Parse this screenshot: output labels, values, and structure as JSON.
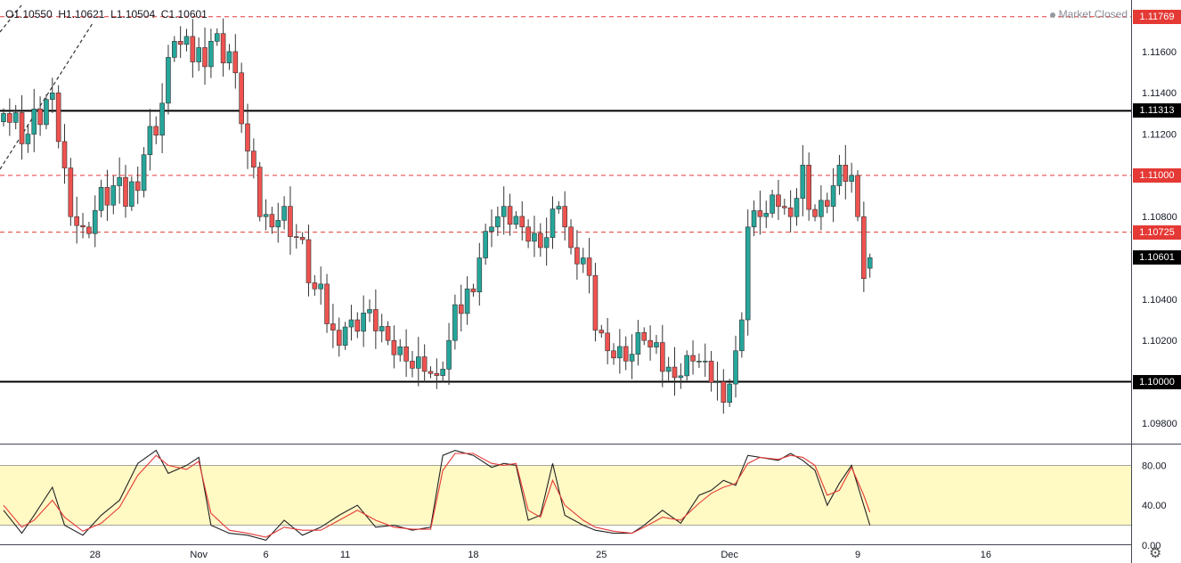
{
  "header": {
    "ohlc": "O1.10550  H1.10621  L1.10504  C1.10601",
    "status": "Market Closed"
  },
  "price_tags": [
    {
      "label": "1.11769",
      "value": 1.11769,
      "color": "#e53935"
    },
    {
      "label": "1.11313",
      "value": 1.11313,
      "color": "#000000"
    },
    {
      "label": "1.11000",
      "value": 1.11,
      "color": "#e53935"
    },
    {
      "label": "1.10725",
      "value": 1.10725,
      "color": "#e53935"
    },
    {
      "label": "1.10601",
      "value": 1.10601,
      "color": "#000000"
    },
    {
      "label": "1.10000",
      "value": 1.1,
      "color": "#000000"
    }
  ],
  "chart_data": [
    {
      "type": "candlestick",
      "title": "",
      "ylim": [
        1.097,
        1.1185
      ],
      "yticks": [
        "1.11600",
        "1.11400",
        "1.11200",
        "1.11000",
        "1.10800",
        "1.10600",
        "1.10400",
        "1.10200",
        "1.10000",
        "1.09800"
      ],
      "ytick_values": [
        1.116,
        1.114,
        1.112,
        1.11,
        1.108,
        1.106,
        1.104,
        1.102,
        1.1,
        1.098
      ],
      "xticks": [
        "28",
        "Nov",
        "6",
        "11",
        "18",
        "25",
        "Dec",
        "9",
        "16"
      ],
      "xtick_bar_index": [
        15,
        32,
        43,
        56,
        77,
        98,
        119,
        140,
        161
      ],
      "horizontal_lines": [
        {
          "value": 1.11769,
          "style": "dashed",
          "color": "#e53935"
        },
        {
          "value": 1.11313,
          "style": "solid",
          "color": "#000000"
        },
        {
          "value": 1.11,
          "style": "dashed",
          "color": "#e53935"
        },
        {
          "value": 1.10725,
          "style": "dashed",
          "color": "#e53935"
        },
        {
          "value": 1.1,
          "style": "solid",
          "color": "#000000"
        }
      ],
      "bull_color": "#26a69a",
      "bear_color": "#ef5350",
      "close_anchors": [
        {
          "i": 0,
          "c": 1.113
        },
        {
          "i": 4,
          "c": 1.112
        },
        {
          "i": 8,
          "c": 1.114
        },
        {
          "i": 11,
          "c": 1.108
        },
        {
          "i": 13,
          "c": 1.1075
        },
        {
          "i": 18,
          "c": 1.1095
        },
        {
          "i": 20,
          "c": 1.1085
        },
        {
          "i": 23,
          "c": 1.111
        },
        {
          "i": 26,
          "c": 1.1135
        },
        {
          "i": 28,
          "c": 1.1165
        },
        {
          "i": 31,
          "c": 1.1155
        },
        {
          "i": 34,
          "c": 1.1165
        },
        {
          "i": 37,
          "c": 1.116
        },
        {
          "i": 39,
          "c": 1.1125
        },
        {
          "i": 42,
          "c": 1.108
        },
        {
          "i": 44,
          "c": 1.1075
        },
        {
          "i": 46,
          "c": 1.1085
        },
        {
          "i": 48,
          "c": 1.107
        },
        {
          "i": 51,
          "c": 1.1045
        },
        {
          "i": 54,
          "c": 1.1025
        },
        {
          "i": 57,
          "c": 1.103
        },
        {
          "i": 60,
          "c": 1.1035
        },
        {
          "i": 63,
          "c": 1.102
        },
        {
          "i": 66,
          "c": 1.101
        },
        {
          "i": 69,
          "c": 1.1005
        },
        {
          "i": 71,
          "c": 1.1003
        },
        {
          "i": 73,
          "c": 1.102
        },
        {
          "i": 76,
          "c": 1.1045
        },
        {
          "i": 78,
          "c": 1.106
        },
        {
          "i": 80,
          "c": 1.1075
        },
        {
          "i": 82,
          "c": 1.1085
        },
        {
          "i": 85,
          "c": 1.1075
        },
        {
          "i": 88,
          "c": 1.1065
        },
        {
          "i": 91,
          "c": 1.1085
        },
        {
          "i": 93,
          "c": 1.1065
        },
        {
          "i": 95,
          "c": 1.106
        },
        {
          "i": 97,
          "c": 1.1025
        },
        {
          "i": 99,
          "c": 1.1015
        },
        {
          "i": 102,
          "c": 1.101
        },
        {
          "i": 105,
          "c": 1.102
        },
        {
          "i": 108,
          "c": 1.1005
        },
        {
          "i": 110,
          "c": 1.1002
        },
        {
          "i": 113,
          "c": 1.101
        },
        {
          "i": 115,
          "c": 1.101
        },
        {
          "i": 117,
          "c": 1.1
        },
        {
          "i": 118,
          "c": 1.099
        },
        {
          "i": 120,
          "c": 1.1015
        },
        {
          "i": 121,
          "c": 1.103
        },
        {
          "i": 122,
          "c": 1.1075
        },
        {
          "i": 124,
          "c": 1.108
        },
        {
          "i": 127,
          "c": 1.1085
        },
        {
          "i": 129,
          "c": 1.108
        },
        {
          "i": 131,
          "c": 1.1105
        },
        {
          "i": 133,
          "c": 1.108
        },
        {
          "i": 135,
          "c": 1.1085
        },
        {
          "i": 137,
          "c": 1.1105
        },
        {
          "i": 139,
          "c": 1.11
        },
        {
          "i": 140,
          "c": 1.108
        },
        {
          "i": 141,
          "c": 1.105
        },
        {
          "i": 142,
          "c": 1.10601
        }
      ],
      "last_bar": {
        "o": 1.1055,
        "h": 1.10621,
        "l": 1.10504,
        "c": 1.10601
      }
    },
    {
      "type": "line",
      "title": "",
      "ylim": [
        0,
        100
      ],
      "yticks": [
        "80.00",
        "40.00",
        "0.00"
      ],
      "ytick_values": [
        80,
        40,
        0
      ],
      "band": [
        20,
        80
      ],
      "series": [
        {
          "color": "#222222",
          "points": [
            [
              0,
              35
            ],
            [
              3,
              12
            ],
            [
              5,
              30
            ],
            [
              8,
              58
            ],
            [
              10,
              20
            ],
            [
              13,
              10
            ],
            [
              16,
              30
            ],
            [
              19,
              45
            ],
            [
              22,
              82
            ],
            [
              25,
              95
            ],
            [
              27,
              72
            ],
            [
              30,
              80
            ],
            [
              32,
              88
            ],
            [
              34,
              20
            ],
            [
              37,
              12
            ],
            [
              40,
              10
            ],
            [
              43,
              5
            ],
            [
              46,
              25
            ],
            [
              49,
              10
            ],
            [
              52,
              18
            ],
            [
              55,
              30
            ],
            [
              58,
              40
            ],
            [
              61,
              18
            ],
            [
              64,
              20
            ],
            [
              67,
              15
            ],
            [
              70,
              18
            ],
            [
              72,
              90
            ],
            [
              74,
              95
            ],
            [
              77,
              90
            ],
            [
              80,
              78
            ],
            [
              82,
              82
            ],
            [
              84,
              80
            ],
            [
              86,
              25
            ],
            [
              88,
              30
            ],
            [
              90,
              82
            ],
            [
              92,
              30
            ],
            [
              95,
              20
            ],
            [
              97,
              15
            ],
            [
              100,
              12
            ],
            [
              103,
              12
            ],
            [
              105,
              20
            ],
            [
              108,
              35
            ],
            [
              111,
              22
            ],
            [
              114,
              50
            ],
            [
              116,
              55
            ],
            [
              118,
              65
            ],
            [
              120,
              60
            ],
            [
              122,
              90
            ],
            [
              124,
              88
            ],
            [
              127,
              85
            ],
            [
              129,
              92
            ],
            [
              131,
              85
            ],
            [
              133,
              75
            ],
            [
              135,
              40
            ],
            [
              137,
              62
            ],
            [
              139,
              80
            ],
            [
              141,
              40
            ],
            [
              142,
              20
            ]
          ]
        },
        {
          "color": "#e53935",
          "points": [
            [
              0,
              40
            ],
            [
              3,
              18
            ],
            [
              5,
              25
            ],
            [
              8,
              45
            ],
            [
              10,
              28
            ],
            [
              13,
              14
            ],
            [
              16,
              22
            ],
            [
              19,
              38
            ],
            [
              22,
              70
            ],
            [
              25,
              90
            ],
            [
              27,
              80
            ],
            [
              30,
              76
            ],
            [
              32,
              84
            ],
            [
              34,
              32
            ],
            [
              37,
              15
            ],
            [
              40,
              12
            ],
            [
              43,
              8
            ],
            [
              46,
              18
            ],
            [
              49,
              15
            ],
            [
              52,
              15
            ],
            [
              55,
              25
            ],
            [
              58,
              35
            ],
            [
              61,
              25
            ],
            [
              64,
              18
            ],
            [
              67,
              16
            ],
            [
              70,
              16
            ],
            [
              72,
              75
            ],
            [
              74,
              92
            ],
            [
              77,
              92
            ],
            [
              80,
              82
            ],
            [
              82,
              80
            ],
            [
              84,
              82
            ],
            [
              86,
              35
            ],
            [
              88,
              28
            ],
            [
              90,
              65
            ],
            [
              92,
              40
            ],
            [
              95,
              25
            ],
            [
              97,
              18
            ],
            [
              100,
              14
            ],
            [
              103,
              12
            ],
            [
              105,
              18
            ],
            [
              108,
              28
            ],
            [
              111,
              25
            ],
            [
              114,
              42
            ],
            [
              116,
              52
            ],
            [
              118,
              58
            ],
            [
              120,
              62
            ],
            [
              122,
              82
            ],
            [
              124,
              88
            ],
            [
              127,
              86
            ],
            [
              129,
              90
            ],
            [
              131,
              88
            ],
            [
              133,
              80
            ],
            [
              135,
              50
            ],
            [
              137,
              55
            ],
            [
              139,
              78
            ],
            [
              141,
              50
            ],
            [
              142,
              33
            ]
          ]
        }
      ]
    }
  ]
}
